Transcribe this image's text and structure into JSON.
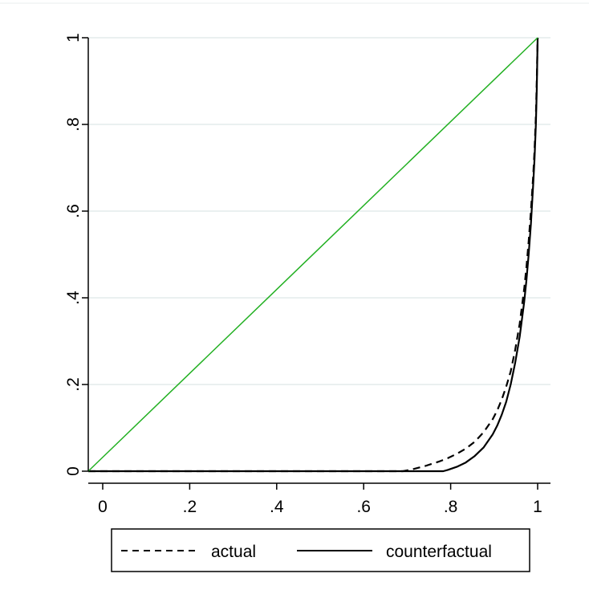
{
  "chart_data": {
    "type": "line",
    "xlim": [
      0,
      1
    ],
    "ylim": [
      0,
      1
    ],
    "x_ticks": [
      {
        "value": 0,
        "label": "0"
      },
      {
        "value": 0.2,
        "label": ".2"
      },
      {
        "value": 0.4,
        "label": ".4"
      },
      {
        "value": 0.6,
        "label": ".6"
      },
      {
        "value": 0.8,
        "label": ".8"
      },
      {
        "value": 1,
        "label": "1"
      }
    ],
    "y_ticks": [
      {
        "value": 0,
        "label": "0"
      },
      {
        "value": 0.2,
        "label": ".2"
      },
      {
        "value": 0.4,
        "label": ".4"
      },
      {
        "value": 0.6,
        "label": ".6"
      },
      {
        "value": 0.8,
        "label": ".8"
      },
      {
        "value": 1,
        "label": "1"
      }
    ],
    "grid": "horizontal",
    "legend_position": "bottom",
    "series": [
      {
        "name": "actual",
        "style": "dashed",
        "color": "#000000",
        "x": [
          0,
          0.7,
          0.72,
          0.75,
          0.78,
          0.8,
          0.82,
          0.84,
          0.86,
          0.88,
          0.9,
          0.91,
          0.92,
          0.93,
          0.94,
          0.95,
          0.96,
          0.97,
          0.975,
          0.98,
          0.985,
          0.99,
          0.993,
          0.996,
          0.998,
          1.0
        ],
        "y": [
          0,
          0,
          0.004,
          0.012,
          0.022,
          0.03,
          0.04,
          0.052,
          0.068,
          0.09,
          0.12,
          0.14,
          0.165,
          0.195,
          0.23,
          0.28,
          0.34,
          0.42,
          0.47,
          0.53,
          0.6,
          0.68,
          0.74,
          0.82,
          0.9,
          1.0
        ]
      },
      {
        "name": "counterfactual",
        "style": "solid",
        "color": "#000000",
        "x": [
          0,
          0.79,
          0.8,
          0.82,
          0.84,
          0.86,
          0.88,
          0.9,
          0.91,
          0.92,
          0.93,
          0.94,
          0.95,
          0.96,
          0.97,
          0.975,
          0.98,
          0.985,
          0.99,
          0.993,
          0.996,
          0.998,
          1.0
        ],
        "y": [
          0,
          0,
          0.003,
          0.01,
          0.02,
          0.035,
          0.055,
          0.085,
          0.105,
          0.13,
          0.16,
          0.2,
          0.25,
          0.31,
          0.39,
          0.44,
          0.5,
          0.57,
          0.66,
          0.72,
          0.8,
          0.88,
          1.0
        ]
      },
      {
        "style": "solid",
        "color": "#22b022",
        "x": [
          0,
          1
        ],
        "y": [
          0,
          1
        ]
      }
    ]
  }
}
